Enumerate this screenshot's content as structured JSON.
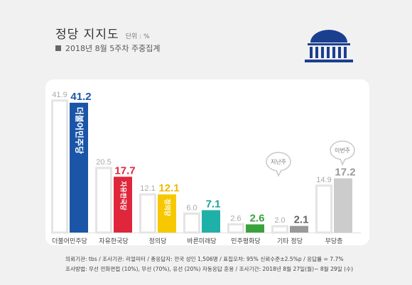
{
  "header": {
    "title": "정당 지지도",
    "unit": "단위 : %",
    "subtitle": "2018년 8월 5주차 주중집계"
  },
  "colors": {
    "prev_bar_stroke": "#e4e4e4",
    "prev_label": "#aaaaaa",
    "logo": "#1b3f8f"
  },
  "chart_data": {
    "type": "bar",
    "categories": [
      "더불어민주당",
      "자유한국당",
      "정의당",
      "바른미래당",
      "민주평화당",
      "기타 정당",
      "무당층"
    ],
    "series": [
      {
        "name": "지난주",
        "values": [
          41.9,
          20.5,
          12.1,
          6.0,
          2.6,
          2.0,
          14.9
        ]
      },
      {
        "name": "이번주",
        "values": [
          41.2,
          17.7,
          12.1,
          7.1,
          2.6,
          2.1,
          17.2
        ]
      }
    ],
    "current_labels": [
      "41.2",
      "17.7",
      "12.1",
      "7.1",
      "2.6",
      "2.1",
      "17.2"
    ],
    "previous_labels": [
      "41.9",
      "20.5",
      "12.1",
      "6.0",
      "2.6",
      "2.0",
      "14.9"
    ],
    "bar_colors": [
      "#1b55a8",
      "#e0263a",
      "#f7c800",
      "#1fb0a8",
      "#3aa23c",
      "#999999",
      "#cccccc"
    ],
    "label_colors": [
      "#1b55a8",
      "#e0263a",
      "#f2b800",
      "#18a39b",
      "#3aa23c",
      "#666666",
      "#999999"
    ],
    "bar_texts": [
      "더불어민주당",
      "자유한국당",
      "정의당",
      "",
      "",
      "",
      ""
    ],
    "ylim": [
      0,
      45
    ],
    "bubbles": {
      "previous": "지난주",
      "current": "이번주"
    }
  },
  "footer": {
    "line1": "의뢰기관: tbs / 조사기관: 리얼미터 / 총응답자: 전국 성인 1,506명 / 표집오차: 95% 신뢰수준±2.5%p / 응답률 = 7.7%",
    "line2": "조사방법: 무선 전화면접 (10%), 무선 (70%), 유선 (20%) 자동응답 혼용 / 조사기간: 2018년 8월 27일(월)~ 8월 29일 (수)"
  }
}
